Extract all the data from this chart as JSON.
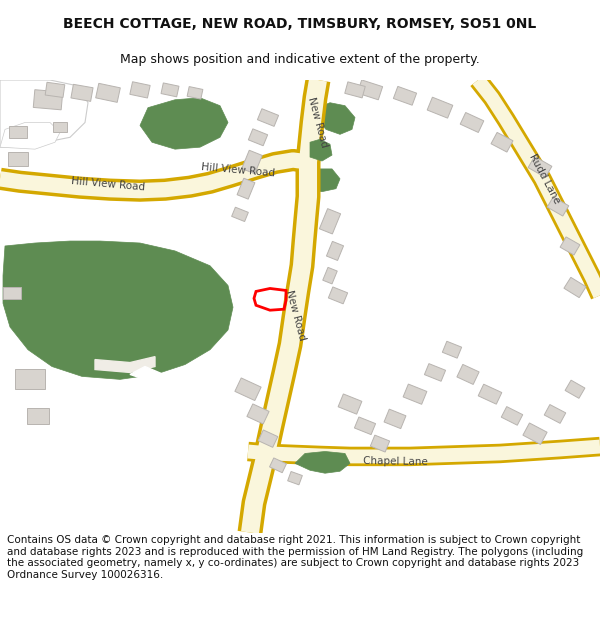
{
  "title": "BEECH COTTAGE, NEW ROAD, TIMSBURY, ROMSEY, SO51 0NL",
  "subtitle": "Map shows position and indicative extent of the property.",
  "footer": "Contains OS data © Crown copyright and database right 2021. This information is subject to Crown copyright and database rights 2023 and is reproduced with the permission of HM Land Registry. The polygons (including the associated geometry, namely x, y co-ordinates) are subject to Crown copyright and database rights 2023 Ordnance Survey 100026316.",
  "map_bg": "#f0ede6",
  "road_fill": "#faf6dc",
  "road_border": "#d4a800",
  "green_color": "#5e8c52",
  "building_color": "#d8d4cf",
  "building_edge": "#b8b4b0",
  "plot_color": "#ff0000",
  "label_color": "#444444",
  "title_fontsize": 10,
  "subtitle_fontsize": 9,
  "footer_fontsize": 7.5
}
